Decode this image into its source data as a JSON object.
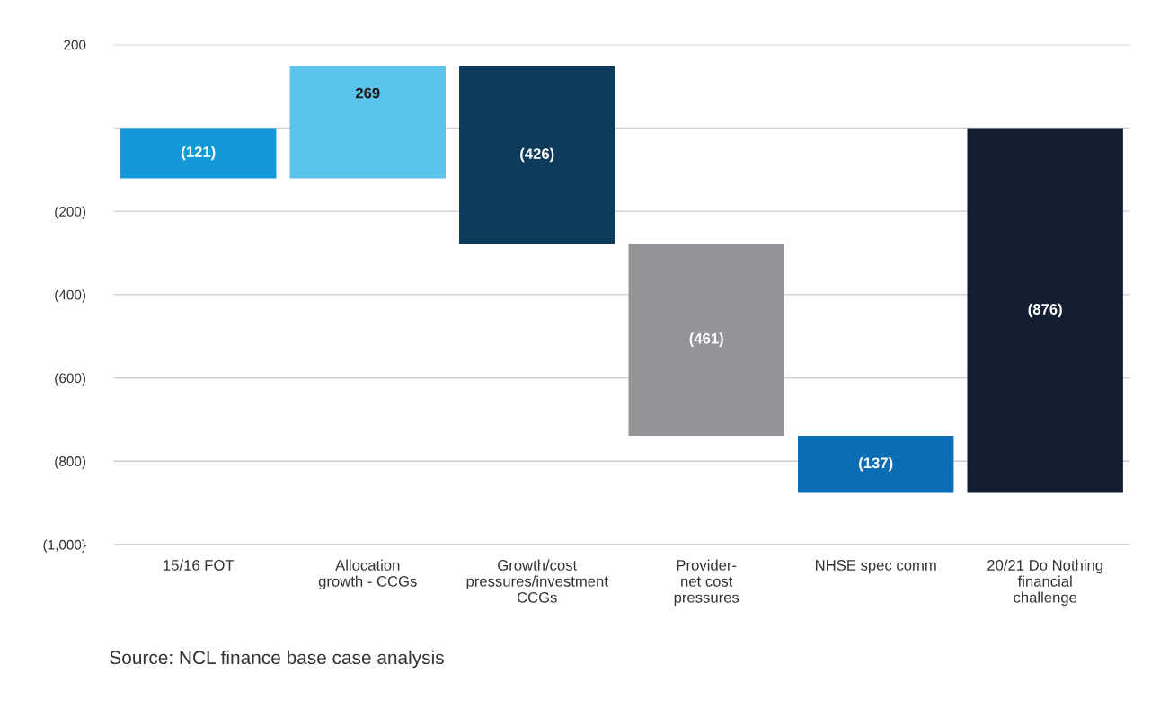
{
  "chart_data": {
    "type": "bar",
    "categories": [
      "15/16 FOT",
      "Allocation\ngrowth - CCGs",
      "Growth/cost\npressures/investment\nCCGs",
      "Provider-\nnet cost\npressures",
      "NHSE spec comm",
      "20/21 Do Nothing\nfinancial\nchallenge"
    ],
    "values": [
      -121,
      269,
      -426,
      -461,
      -137,
      -876
    ],
    "base": [
      0,
      -121,
      148,
      -278,
      -739,
      0
    ],
    "colors": [
      "#1499d8",
      "#5bc4ed",
      "#0e3a5c",
      "#949599",
      "#0a6db5",
      "#131e30"
    ],
    "value_labels": [
      "(121)",
      "269",
      "(426)",
      "(461)",
      "(137)",
      "(876)"
    ],
    "ylim": [
      -1000,
      200
    ],
    "yticks": [
      200,
      {
        "value": 0,
        "label": null
      },
      {
        "value": -200,
        "label": "(200)"
      },
      {
        "value": -400,
        "label": "(400)"
      },
      {
        "value": -600,
        "label": "(600)"
      },
      {
        "value": -800,
        "label": "(800)"
      },
      {
        "value": -1000,
        "label": "(1,000}"
      }
    ],
    "grid": "y",
    "annotations": [
      "Source: NCL finance base case analysis"
    ]
  }
}
